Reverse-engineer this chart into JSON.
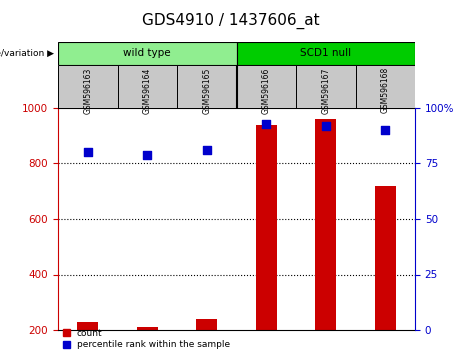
{
  "title": "GDS4910 / 1437606_at",
  "samples": [
    "GSM596163",
    "GSM596164",
    "GSM596165",
    "GSM596166",
    "GSM596167",
    "GSM596168"
  ],
  "count_values": [
    230,
    210,
    240,
    940,
    960,
    720
  ],
  "percentile_values": [
    80,
    79,
    81,
    93,
    92,
    90
  ],
  "groups": [
    {
      "label": "wild type",
      "samples": [
        0,
        1,
        2
      ],
      "color": "#90ee90"
    },
    {
      "label": "SCD1 null",
      "samples": [
        3,
        4,
        5
      ],
      "color": "#00cc00"
    }
  ],
  "group_label": "genotype/variation",
  "ylim_left": [
    200,
    1000
  ],
  "ylim_right": [
    0,
    100
  ],
  "yticks_left": [
    200,
    400,
    600,
    800,
    1000
  ],
  "yticks_right": [
    0,
    25,
    50,
    75,
    100
  ],
  "bar_color": "#cc0000",
  "dot_color": "#0000cc",
  "panel_bg": "#c8c8c8",
  "legend_count_label": "count",
  "legend_pct_label": "percentile rank within the sample",
  "bar_width": 0.35,
  "dot_size": 40,
  "title_fontsize": 11
}
